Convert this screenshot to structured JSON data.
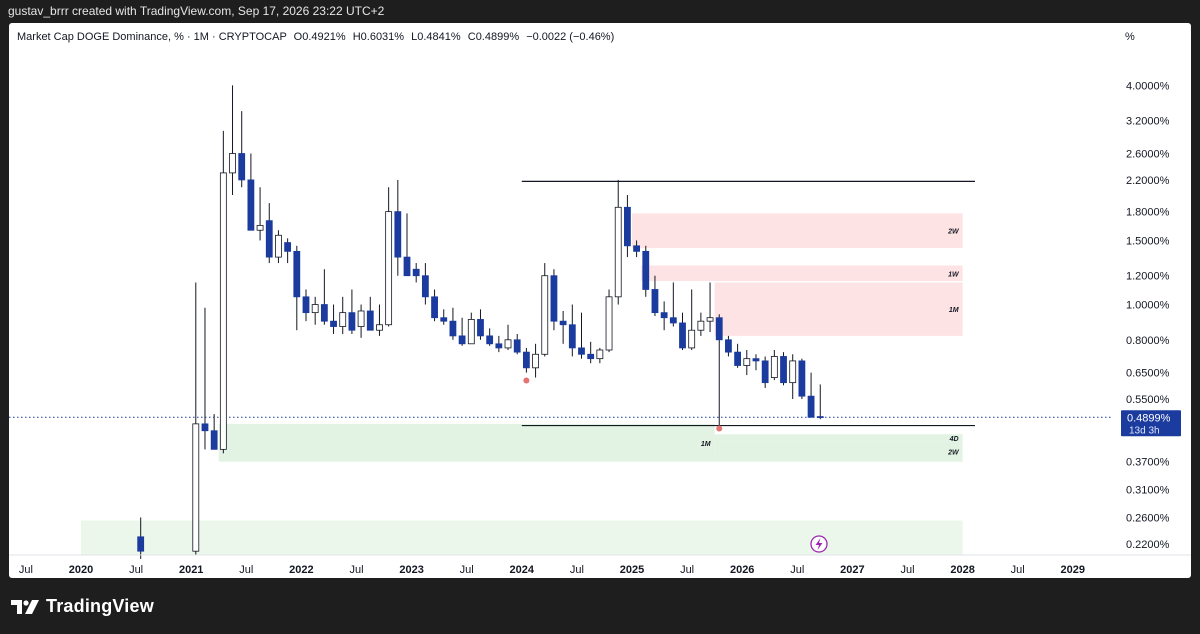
{
  "header": {
    "attribution": "gustav_brrr created with TradingView.com, Sep 17, 2026 23:22 UTC+2"
  },
  "legend": {
    "symbol": "Market Cap DOGE Dominance, % · 1M · CRYPTOCAP",
    "open": "O0.4921%",
    "high": "H0.6031%",
    "low": "L0.4841%",
    "close": "C0.4899%",
    "change": "−0.0022 (−0.46%)"
  },
  "scale_button": "%",
  "brand": {
    "name": "TradingView"
  },
  "chart_data": {
    "type": "candlestick",
    "y_scale": "log",
    "ylim": [
      0.205,
      4.3
    ],
    "y_ticks": [
      {
        "v": 4.0,
        "label": "4.0000%"
      },
      {
        "v": 3.2,
        "label": "3.2000%"
      },
      {
        "v": 2.6,
        "label": "2.6000%"
      },
      {
        "v": 2.2,
        "label": "2.2000%"
      },
      {
        "v": 1.8,
        "label": "1.8000%"
      },
      {
        "v": 1.5,
        "label": "1.5000%"
      },
      {
        "v": 1.2,
        "label": "1.2000%"
      },
      {
        "v": 1.0,
        "label": "1.0000%"
      },
      {
        "v": 0.8,
        "label": "0.8000%"
      },
      {
        "v": 0.65,
        "label": "0.6500%"
      },
      {
        "v": 0.55,
        "label": "0.5500%"
      },
      {
        "v": 0.37,
        "label": "0.3700%"
      },
      {
        "v": 0.31,
        "label": "0.3100%"
      },
      {
        "v": 0.26,
        "label": "0.2600%"
      },
      {
        "v": 0.22,
        "label": "0.2200%"
      }
    ],
    "x_ticks": [
      {
        "t": 2019.5,
        "label": "Jul",
        "bold": false
      },
      {
        "t": 2020,
        "label": "2020",
        "bold": true
      },
      {
        "t": 2020.5,
        "label": "Jul",
        "bold": false
      },
      {
        "t": 2021,
        "label": "2021",
        "bold": true
      },
      {
        "t": 2021.5,
        "label": "Jul",
        "bold": false
      },
      {
        "t": 2022,
        "label": "2022",
        "bold": true
      },
      {
        "t": 2022.5,
        "label": "Jul",
        "bold": false
      },
      {
        "t": 2023,
        "label": "2023",
        "bold": true
      },
      {
        "t": 2023.5,
        "label": "Jul",
        "bold": false
      },
      {
        "t": 2024,
        "label": "2024",
        "bold": true
      },
      {
        "t": 2024.5,
        "label": "Jul",
        "bold": false
      },
      {
        "t": 2025,
        "label": "2025",
        "bold": true
      },
      {
        "t": 2025.5,
        "label": "Jul",
        "bold": false
      },
      {
        "t": 2026,
        "label": "2026",
        "bold": true
      },
      {
        "t": 2026.5,
        "label": "Jul",
        "bold": false
      },
      {
        "t": 2027,
        "label": "2027",
        "bold": true
      },
      {
        "t": 2027.5,
        "label": "Jul",
        "bold": false
      },
      {
        "t": 2028,
        "label": "2028",
        "bold": true
      },
      {
        "t": 2028.5,
        "label": "Jul",
        "bold": false
      },
      {
        "t": 2029,
        "label": "2029",
        "bold": true
      }
    ],
    "series": [
      {
        "candles": [
          {
            "t": "2020-07",
            "o": 0.23,
            "h": 0.26,
            "l": 0.2,
            "c": 0.21
          },
          {
            "t": "2021-01",
            "o": 0.21,
            "h": 1.15,
            "l": 0.205,
            "c": 0.47
          },
          {
            "t": "2021-02",
            "o": 0.47,
            "h": 0.98,
            "l": 0.4,
            "c": 0.45
          },
          {
            "t": "2021-03",
            "o": 0.45,
            "h": 0.5,
            "l": 0.4,
            "c": 0.4
          },
          {
            "t": "2021-04",
            "o": 0.4,
            "h": 3.0,
            "l": 0.39,
            "c": 2.3
          },
          {
            "t": "2021-05",
            "o": 2.3,
            "h": 4.0,
            "l": 2.0,
            "c": 2.6
          },
          {
            "t": "2021-06",
            "o": 2.6,
            "h": 3.4,
            "l": 2.1,
            "c": 2.2
          },
          {
            "t": "2021-07",
            "o": 2.2,
            "h": 2.6,
            "l": 1.6,
            "c": 1.6
          },
          {
            "t": "2021-08",
            "o": 1.6,
            "h": 2.1,
            "l": 1.5,
            "c": 1.65
          },
          {
            "t": "2021-09",
            "o": 1.7,
            "h": 1.9,
            "l": 1.3,
            "c": 1.35
          },
          {
            "t": "2021-10",
            "o": 1.35,
            "h": 1.6,
            "l": 1.3,
            "c": 1.55
          },
          {
            "t": "2021-11",
            "o": 1.48,
            "h": 1.52,
            "l": 1.3,
            "c": 1.4
          },
          {
            "t": "2021-12",
            "o": 1.4,
            "h": 1.45,
            "l": 0.85,
            "c": 1.05
          },
          {
            "t": "2022-01",
            "o": 1.05,
            "h": 1.1,
            "l": 0.9,
            "c": 0.95
          },
          {
            "t": "2022-02",
            "o": 0.95,
            "h": 1.05,
            "l": 0.88,
            "c": 1.0
          },
          {
            "t": "2022-03",
            "o": 1.0,
            "h": 1.25,
            "l": 0.88,
            "c": 0.9
          },
          {
            "t": "2022-04",
            "o": 0.9,
            "h": 1.0,
            "l": 0.83,
            "c": 0.87
          },
          {
            "t": "2022-05",
            "o": 0.87,
            "h": 1.05,
            "l": 0.83,
            "c": 0.95
          },
          {
            "t": "2022-06",
            "o": 0.95,
            "h": 1.1,
            "l": 0.83,
            "c": 0.85
          },
          {
            "t": "2022-07",
            "o": 0.87,
            "h": 1.0,
            "l": 0.81,
            "c": 0.96
          },
          {
            "t": "2022-08",
            "o": 0.96,
            "h": 1.05,
            "l": 0.86,
            "c": 0.85
          },
          {
            "t": "2022-09",
            "o": 0.85,
            "h": 1.0,
            "l": 0.82,
            "c": 0.88
          },
          {
            "t": "2022-10",
            "o": 0.88,
            "h": 2.1,
            "l": 0.87,
            "c": 1.8
          },
          {
            "t": "2022-11",
            "o": 1.8,
            "h": 2.2,
            "l": 1.2,
            "c": 1.35
          },
          {
            "t": "2022-12",
            "o": 1.35,
            "h": 1.78,
            "l": 1.2,
            "c": 1.2
          },
          {
            "t": "2023-01",
            "o": 1.25,
            "h": 1.3,
            "l": 1.15,
            "c": 1.2
          },
          {
            "t": "2023-02",
            "o": 1.2,
            "h": 1.3,
            "l": 1.0,
            "c": 1.05
          },
          {
            "t": "2023-03",
            "o": 1.05,
            "h": 1.1,
            "l": 0.9,
            "c": 0.92
          },
          {
            "t": "2023-04",
            "o": 0.92,
            "h": 0.97,
            "l": 0.88,
            "c": 0.9
          },
          {
            "t": "2023-05",
            "o": 0.9,
            "h": 0.98,
            "l": 0.8,
            "c": 0.82
          },
          {
            "t": "2023-06",
            "o": 0.82,
            "h": 0.92,
            "l": 0.77,
            "c": 0.78
          },
          {
            "t": "2023-07",
            "o": 0.78,
            "h": 0.95,
            "l": 0.78,
            "c": 0.91
          },
          {
            "t": "2023-08",
            "o": 0.91,
            "h": 0.97,
            "l": 0.8,
            "c": 0.82
          },
          {
            "t": "2023-09",
            "o": 0.82,
            "h": 0.86,
            "l": 0.77,
            "c": 0.78
          },
          {
            "t": "2023-10",
            "o": 0.78,
            "h": 0.82,
            "l": 0.74,
            "c": 0.76
          },
          {
            "t": "2023-11",
            "o": 0.76,
            "h": 0.88,
            "l": 0.75,
            "c": 0.8
          },
          {
            "t": "2023-12",
            "o": 0.8,
            "h": 0.83,
            "l": 0.73,
            "c": 0.74
          },
          {
            "t": "2024-01",
            "o": 0.74,
            "h": 0.76,
            "l": 0.65,
            "c": 0.67
          },
          {
            "t": "2024-02",
            "o": 0.67,
            "h": 0.78,
            "l": 0.63,
            "c": 0.73
          },
          {
            "t": "2024-03",
            "o": 0.73,
            "h": 1.3,
            "l": 0.72,
            "c": 1.2
          },
          {
            "t": "2024-04",
            "o": 1.2,
            "h": 1.25,
            "l": 0.85,
            "c": 0.9
          },
          {
            "t": "2024-05",
            "o": 0.9,
            "h": 0.96,
            "l": 0.78,
            "c": 0.88
          },
          {
            "t": "2024-06",
            "o": 0.88,
            "h": 1.0,
            "l": 0.72,
            "c": 0.76
          },
          {
            "t": "2024-07",
            "o": 0.76,
            "h": 0.95,
            "l": 0.71,
            "c": 0.73
          },
          {
            "t": "2024-08",
            "o": 0.73,
            "h": 0.79,
            "l": 0.69,
            "c": 0.71
          },
          {
            "t": "2024-09",
            "o": 0.71,
            "h": 0.76,
            "l": 0.69,
            "c": 0.75
          },
          {
            "t": "2024-10",
            "o": 0.75,
            "h": 1.1,
            "l": 0.74,
            "c": 1.05
          },
          {
            "t": "2024-11",
            "o": 1.05,
            "h": 2.2,
            "l": 1.0,
            "c": 1.85
          },
          {
            "t": "2024-12",
            "o": 1.85,
            "h": 2.0,
            "l": 1.35,
            "c": 1.45
          },
          {
            "t": "2025-01",
            "o": 1.45,
            "h": 1.5,
            "l": 1.35,
            "c": 1.4
          },
          {
            "t": "2025-02",
            "o": 1.4,
            "h": 1.45,
            "l": 1.05,
            "c": 1.1
          },
          {
            "t": "2025-03",
            "o": 1.1,
            "h": 1.2,
            "l": 0.93,
            "c": 0.95
          },
          {
            "t": "2025-04",
            "o": 0.95,
            "h": 1.02,
            "l": 0.85,
            "c": 0.92
          },
          {
            "t": "2025-05",
            "o": 0.92,
            "h": 1.15,
            "l": 0.87,
            "c": 0.89
          },
          {
            "t": "2025-06",
            "o": 0.89,
            "h": 0.95,
            "l": 0.75,
            "c": 0.76
          },
          {
            "t": "2025-07",
            "o": 0.76,
            "h": 1.1,
            "l": 0.75,
            "c": 0.85
          },
          {
            "t": "2025-08",
            "o": 0.85,
            "h": 0.95,
            "l": 0.82,
            "c": 0.9
          },
          {
            "t": "2025-09",
            "o": 0.9,
            "h": 1.15,
            "l": 0.84,
            "c": 0.92
          },
          {
            "t": "2025-10",
            "o": 0.92,
            "h": 0.94,
            "l": 0.465,
            "c": 0.8
          },
          {
            "t": "2025-11",
            "o": 0.8,
            "h": 0.82,
            "l": 0.72,
            "c": 0.74
          },
          {
            "t": "2025-12",
            "o": 0.74,
            "h": 0.78,
            "l": 0.67,
            "c": 0.68
          },
          {
            "t": "2026-01",
            "o": 0.68,
            "h": 0.75,
            "l": 0.64,
            "c": 0.71
          },
          {
            "t": "2026-02",
            "o": 0.71,
            "h": 0.73,
            "l": 0.66,
            "c": 0.7
          },
          {
            "t": "2026-03",
            "o": 0.7,
            "h": 0.72,
            "l": 0.59,
            "c": 0.61
          },
          {
            "t": "2026-04",
            "o": 0.63,
            "h": 0.75,
            "l": 0.62,
            "c": 0.72
          },
          {
            "t": "2026-05",
            "o": 0.72,
            "h": 0.74,
            "l": 0.6,
            "c": 0.61
          },
          {
            "t": "2026-06",
            "o": 0.61,
            "h": 0.73,
            "l": 0.55,
            "c": 0.7
          },
          {
            "t": "2026-07",
            "o": 0.7,
            "h": 0.71,
            "l": 0.55,
            "c": 0.56
          },
          {
            "t": "2026-08",
            "o": 0.56,
            "h": 0.65,
            "l": 0.49,
            "c": 0.49
          },
          {
            "t": "2026-09",
            "o": 0.4921,
            "h": 0.6031,
            "l": 0.4841,
            "c": 0.4899
          }
        ]
      }
    ],
    "zones": [
      {
        "kind": "supply",
        "label": "2W",
        "t1": "2025-01",
        "t2": "2028-01",
        "y1": 1.43,
        "y2": 1.78
      },
      {
        "kind": "supply",
        "label": "1W",
        "t1": "2025-02",
        "t2": "2028-01",
        "y1": 1.16,
        "y2": 1.28
      },
      {
        "kind": "supply",
        "label": "1M",
        "t1": "2025-10",
        "t2": "2028-01",
        "y1": 0.82,
        "y2": 1.15
      },
      {
        "kind": "demand",
        "label": "1M",
        "t1": "2021-04",
        "t2": "2025-10",
        "y1": 0.37,
        "y2": 0.47
      },
      {
        "kind": "demand",
        "label": "4D",
        "t1": "2025-10",
        "t2": "2028-01",
        "y1": 0.42,
        "y2": 0.44
      },
      {
        "kind": "demand",
        "label": "2W",
        "t1": "2025-10",
        "t2": "2028-01",
        "y1": 0.37,
        "y2": 0.42
      },
      {
        "kind": "demand",
        "label": "",
        "t1": "2020-01",
        "t2": "2028-01",
        "y1": 0.205,
        "y2": 0.255
      }
    ],
    "levels": [
      {
        "label": "high",
        "value": 2.18,
        "t1": "2024-01",
        "t2": "2028-01"
      },
      {
        "label": "low",
        "value": 0.465,
        "t1": "2024-01",
        "t2": "2028-01"
      }
    ],
    "markers": [
      {
        "t": "2024-01",
        "value": 0.63
      },
      {
        "t": "2025-10",
        "value": 0.465
      }
    ],
    "current_price": {
      "value": 0.4899,
      "label": "0.4899%",
      "countdown": "13d 3h"
    },
    "colors": {
      "up": "#ffffff",
      "down": "#1b3b9e",
      "supply": "#fde3e4",
      "demand": "#e3f3e3",
      "price_tag": "#1b3b9e",
      "marker": "#e57373"
    }
  }
}
